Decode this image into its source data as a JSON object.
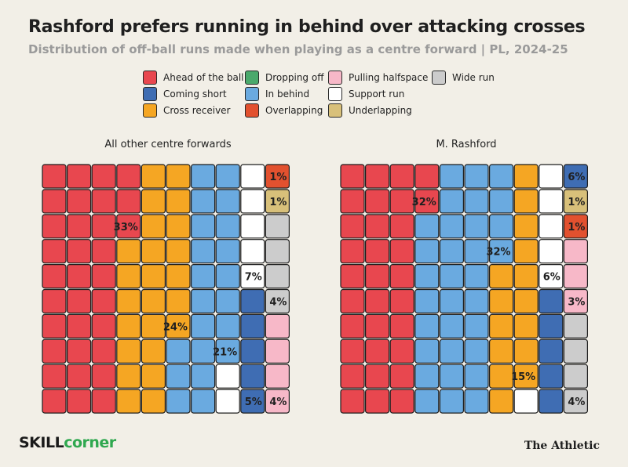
{
  "title": "Rashford prefers running in behind over attacking crosses",
  "subtitle": "Distribution of off-ball runs made when playing as a centre forward | PL, 2024-25",
  "brand": {
    "part1": "SKILL",
    "part2": "corner"
  },
  "publisher": "The Athletic",
  "legend": [
    {
      "key": "ahead",
      "label": "Ahead of the ball",
      "color": "#e8474f"
    },
    {
      "key": "short",
      "label": "Coming short",
      "color": "#3f6db3"
    },
    {
      "key": "cross",
      "label": "Cross receiver",
      "color": "#f5a623"
    },
    {
      "key": "drop",
      "label": "Dropping off",
      "color": "#4aa96c"
    },
    {
      "key": "behind",
      "label": "In behind",
      "color": "#6aaae0"
    },
    {
      "key": "overlap",
      "label": "Overlapping",
      "color": "#e2512f"
    },
    {
      "key": "half",
      "label": "Pulling halfspace",
      "color": "#f7b8c8"
    },
    {
      "key": "support",
      "label": "Support run",
      "color": "#ffffff"
    },
    {
      "key": "under",
      "label": "Underlapping",
      "color": "#d8c07a"
    },
    {
      "key": "wide",
      "label": "Wide run",
      "color": "#cccccc"
    }
  ],
  "chart_data": [
    {
      "type": "waffle",
      "title": "All other centre forwards",
      "rows": 10,
      "cols": 10,
      "categories": [
        "ahead",
        "cross",
        "behind",
        "support",
        "short",
        "overlap",
        "under",
        "wide",
        "half"
      ],
      "labels": [
        "Ahead of the ball",
        "Cross receiver",
        "In behind",
        "Support run",
        "Coming short",
        "Overlapping",
        "Underlapping",
        "Wide run",
        "Pulling halfspace"
      ],
      "values": [
        33,
        24,
        21,
        7,
        5,
        1,
        1,
        4,
        4
      ],
      "value_labels": [
        "33%",
        "24%",
        "21%",
        "7%",
        "5%",
        "1%",
        "1%",
        "4%",
        "4%"
      ]
    },
    {
      "type": "waffle",
      "title": "M. Rashford",
      "rows": 10,
      "cols": 10,
      "categories": [
        "ahead",
        "behind",
        "cross",
        "support",
        "short",
        "under",
        "overlap",
        "half",
        "wide"
      ],
      "labels": [
        "Ahead of the ball",
        "In behind",
        "Cross receiver",
        "Support run",
        "Coming short",
        "Underlapping",
        "Overlapping",
        "Pulling halfspace",
        "Wide run"
      ],
      "values": [
        32,
        32,
        15,
        6,
        6,
        1,
        1,
        3,
        4
      ],
      "value_labels": [
        "32%",
        "32%",
        "15%",
        "6%",
        "6%",
        "1%",
        "1%",
        "3%",
        "4%"
      ]
    }
  ]
}
